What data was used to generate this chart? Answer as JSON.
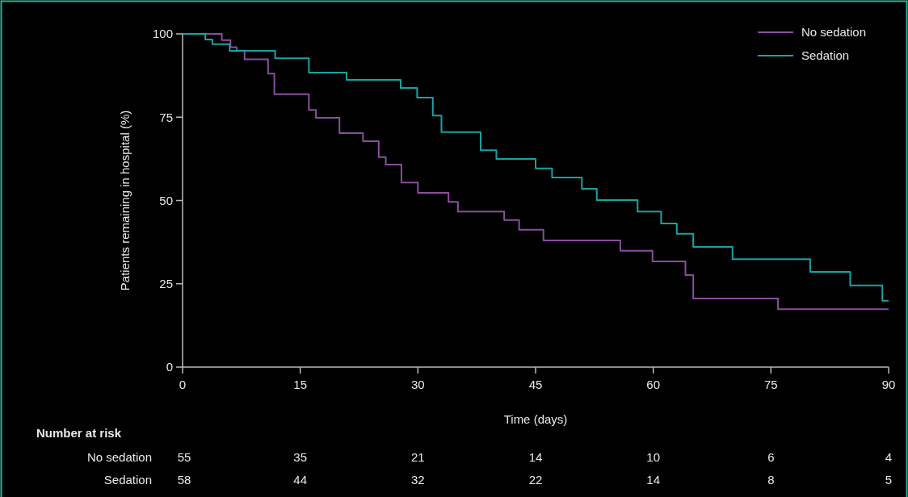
{
  "chart_data": {
    "type": "step",
    "xlabel": "Time (days)",
    "ylabel": "Patients remaining in hospital (%)",
    "xlim": [
      0,
      90
    ],
    "xticks": [
      0,
      15,
      30,
      45,
      60,
      75,
      90
    ],
    "ylim": [
      0,
      100
    ],
    "yticks": [
      0,
      25,
      50,
      75,
      100
    ],
    "grid": false,
    "legend": "top right",
    "line_style": "solid",
    "marker": "none",
    "series": [
      {
        "name": "No sedation",
        "color": "#8a4fa0",
        "x": [
          0,
          5.0,
          6.1,
          6.9,
          7.9,
          10.9,
          11.7,
          16.1,
          17.0,
          20.0,
          23.0,
          25.0,
          25.9,
          27.9,
          30.0,
          33.9,
          35.1,
          41.0,
          42.9,
          46.0,
          55.8,
          59.9,
          64.1,
          65.1,
          75.9,
          90
        ],
        "values": [
          100,
          98.1,
          96,
          95,
          92.4,
          88.1,
          81.9,
          77.2,
          74.8,
          70.2,
          67.8,
          63,
          60.8,
          55.4,
          52.3,
          49.6,
          46.7,
          44.1,
          41.2,
          38,
          34.9,
          31.7,
          27.6,
          20.6,
          17.4,
          17.4
        ]
      },
      {
        "name": "Sedation",
        "color": "#1aa3a3",
        "x": [
          0,
          2.9,
          3.8,
          6.0,
          11.8,
          16.1,
          20.9,
          27.8,
          29.9,
          31.9,
          33.0,
          38.0,
          40.0,
          45.0,
          47.1,
          50.9,
          52.8,
          58.0,
          61.0,
          63.0,
          65.1,
          70.1,
          80.0,
          85.1,
          89.2,
          90
        ],
        "values": [
          100,
          98.3,
          96.9,
          94.9,
          92.7,
          88.4,
          86.2,
          83.8,
          80.9,
          75.5,
          70.5,
          65.1,
          62.5,
          59.6,
          56.9,
          53.5,
          50.1,
          46.7,
          43.1,
          40,
          36.1,
          32.4,
          28.6,
          24.5,
          19.9,
          19.9
        ]
      }
    ],
    "annotations": [
      "Number at risk",
      "No sedation",
      "55",
      "35",
      "21",
      "14",
      "10",
      "6",
      "4",
      "Sedation",
      "58",
      "44",
      "32",
      "22",
      "14",
      "8",
      "5"
    ]
  }
}
